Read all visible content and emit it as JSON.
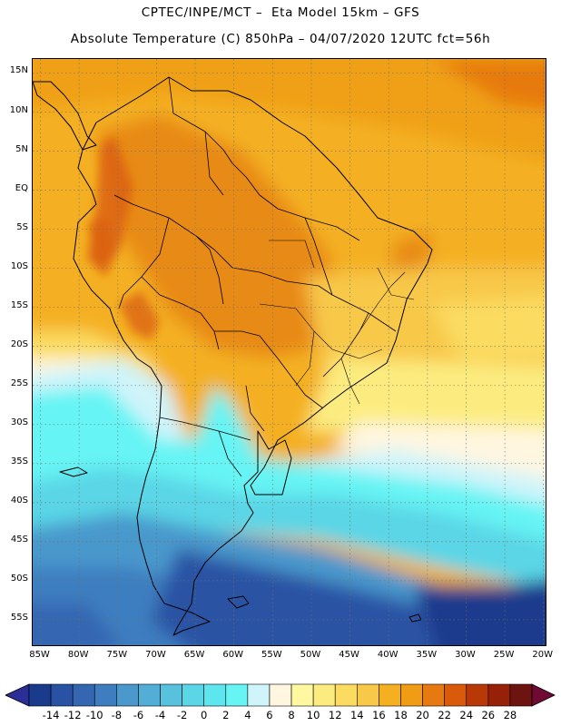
{
  "header": {
    "line1": "CPTEC/INPE/MCT –  Eta Model 15km – GFS",
    "line2": "Absolute Temperature (C) 850hPa – 04/07/2020 12UTC fct=56h"
  },
  "map": {
    "lat_labels": [
      "15N",
      "10N",
      "5N",
      "EQ",
      "5S",
      "10S",
      "15S",
      "20S",
      "25S",
      "30S",
      "35S",
      "40S",
      "45S",
      "50S",
      "55S"
    ],
    "lat_values": [
      15,
      10,
      5,
      0,
      -5,
      -10,
      -15,
      -20,
      -25,
      -30,
      -35,
      -40,
      -45,
      -50,
      -55
    ],
    "lon_labels": [
      "85W",
      "80W",
      "75W",
      "70W",
      "65W",
      "60W",
      "55W",
      "50W",
      "45W",
      "40W",
      "35W",
      "30W",
      "25W",
      "20W"
    ],
    "lon_values": [
      -85,
      -80,
      -75,
      -70,
      -65,
      -60,
      -55,
      -50,
      -45,
      -40,
      -35,
      -30,
      -25,
      -20
    ],
    "extent": {
      "west": -86,
      "east": -19.5,
      "north": 16.8,
      "south": -58.5
    }
  },
  "colorbar": {
    "labels": [
      "-14",
      "-12",
      "-10",
      "-8",
      "-6",
      "-4",
      "-2",
      "0",
      "2",
      "4",
      "6",
      "8",
      "10",
      "12",
      "14",
      "16",
      "18",
      "20",
      "22",
      "24",
      "26",
      "28"
    ],
    "colors": [
      "#1a3a8c",
      "#2a52a4",
      "#3466b2",
      "#3e7ec0",
      "#4a98cc",
      "#52aed6",
      "#58c2de",
      "#5ad6e6",
      "#5ee6ee",
      "#66f4f4",
      "#cff4fa",
      "#fff6e0",
      "#fff8a0",
      "#fcec80",
      "#fbdc60",
      "#f8c848",
      "#f4b020",
      "#f09c14",
      "#e67a10",
      "#d85a0a",
      "#b83808",
      "#962008",
      "#6e1410"
    ],
    "low_cap": "#2a2e96",
    "high_cap": "#700a34"
  }
}
